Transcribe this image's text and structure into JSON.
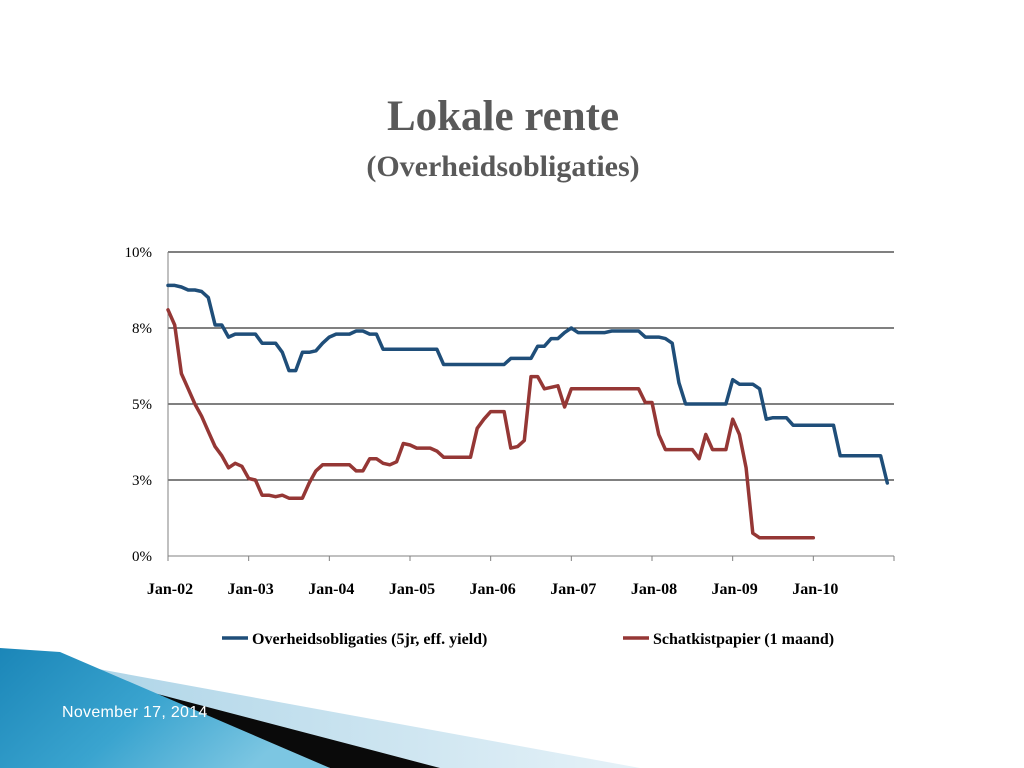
{
  "slide": {
    "title": "Lokale rente",
    "subtitle": "(Overheidsobligaties)",
    "date": "November 17, 2014"
  },
  "chart_data": {
    "type": "line",
    "title": "Lokale rente",
    "subtitle": "(Overheidsobligaties)",
    "x_tick_labels": [
      "Jan-02",
      "Jan-03",
      "Jan-04",
      "Jan-05",
      "Jan-06",
      "Jan-07",
      "Jan-08",
      "Jan-09",
      "Jan-10"
    ],
    "y_tick_labels": [
      "0%",
      "3%",
      "5%",
      "8%",
      "10%"
    ],
    "y_ticks": [
      0,
      2.5,
      5,
      7.5,
      10
    ],
    "ylim": [
      0,
      10
    ],
    "x_start": "2002-01",
    "x_end": "2010-12",
    "gridlines": "horizontal",
    "legend_position": "bottom",
    "series": [
      {
        "name": "Overheidsobligaties (5jr, eff. yield)",
        "color": "#1f4e79",
        "points": [
          [
            "2002-01",
            8.9
          ],
          [
            "2002-02",
            8.9
          ],
          [
            "2002-03",
            8.85
          ],
          [
            "2002-04",
            8.75
          ],
          [
            "2002-05",
            8.75
          ],
          [
            "2002-06",
            8.7
          ],
          [
            "2002-07",
            8.5
          ],
          [
            "2002-08",
            7.6
          ],
          [
            "2002-09",
            7.6
          ],
          [
            "2002-10",
            7.2
          ],
          [
            "2002-11",
            7.3
          ],
          [
            "2002-12",
            7.3
          ],
          [
            "2003-01",
            7.3
          ],
          [
            "2003-02",
            7.3
          ],
          [
            "2003-03",
            7.0
          ],
          [
            "2003-04",
            7.0
          ],
          [
            "2003-05",
            7.0
          ],
          [
            "2003-06",
            6.7
          ],
          [
            "2003-07",
            6.1
          ],
          [
            "2003-08",
            6.1
          ],
          [
            "2003-09",
            6.7
          ],
          [
            "2003-10",
            6.7
          ],
          [
            "2003-11",
            6.75
          ],
          [
            "2003-12",
            7.0
          ],
          [
            "2004-01",
            7.2
          ],
          [
            "2004-02",
            7.3
          ],
          [
            "2004-03",
            7.3
          ],
          [
            "2004-04",
            7.3
          ],
          [
            "2004-05",
            7.4
          ],
          [
            "2004-06",
            7.4
          ],
          [
            "2004-07",
            7.3
          ],
          [
            "2004-08",
            7.3
          ],
          [
            "2004-09",
            6.8
          ],
          [
            "2004-10",
            6.8
          ],
          [
            "2004-11",
            6.8
          ],
          [
            "2004-12",
            6.8
          ],
          [
            "2005-01",
            6.8
          ],
          [
            "2005-02",
            6.8
          ],
          [
            "2005-03",
            6.8
          ],
          [
            "2005-04",
            6.8
          ],
          [
            "2005-05",
            6.8
          ],
          [
            "2005-06",
            6.3
          ],
          [
            "2005-07",
            6.3
          ],
          [
            "2005-08",
            6.3
          ],
          [
            "2005-09",
            6.3
          ],
          [
            "2005-10",
            6.3
          ],
          [
            "2005-11",
            6.3
          ],
          [
            "2005-12",
            6.3
          ],
          [
            "2006-01",
            6.3
          ],
          [
            "2006-02",
            6.3
          ],
          [
            "2006-03",
            6.3
          ],
          [
            "2006-04",
            6.5
          ],
          [
            "2006-05",
            6.5
          ],
          [
            "2006-06",
            6.5
          ],
          [
            "2006-07",
            6.5
          ],
          [
            "2006-08",
            6.9
          ],
          [
            "2006-09",
            6.9
          ],
          [
            "2006-10",
            7.15
          ],
          [
            "2006-11",
            7.15
          ],
          [
            "2006-12",
            7.35
          ],
          [
            "2007-01",
            7.5
          ],
          [
            "2007-02",
            7.35
          ],
          [
            "2007-03",
            7.35
          ],
          [
            "2007-04",
            7.35
          ],
          [
            "2007-05",
            7.35
          ],
          [
            "2007-06",
            7.35
          ],
          [
            "2007-07",
            7.4
          ],
          [
            "2007-08",
            7.4
          ],
          [
            "2007-09",
            7.4
          ],
          [
            "2007-10",
            7.4
          ],
          [
            "2007-11",
            7.4
          ],
          [
            "2007-12",
            7.2
          ],
          [
            "2008-01",
            7.2
          ],
          [
            "2008-02",
            7.2
          ],
          [
            "2008-03",
            7.15
          ],
          [
            "2008-04",
            7.0
          ],
          [
            "2008-05",
            5.7
          ],
          [
            "2008-06",
            5.0
          ],
          [
            "2008-07",
            5.0
          ],
          [
            "2008-08",
            5.0
          ],
          [
            "2008-09",
            5.0
          ],
          [
            "2008-10",
            5.0
          ],
          [
            "2008-11",
            5.0
          ],
          [
            "2008-12",
            5.0
          ],
          [
            "2009-01",
            5.8
          ],
          [
            "2009-02",
            5.65
          ],
          [
            "2009-03",
            5.65
          ],
          [
            "2009-04",
            5.65
          ],
          [
            "2009-05",
            5.5
          ],
          [
            "2009-06",
            4.5
          ],
          [
            "2009-07",
            4.55
          ],
          [
            "2009-08",
            4.55
          ],
          [
            "2009-09",
            4.55
          ],
          [
            "2009-10",
            4.3
          ],
          [
            "2009-11",
            4.3
          ],
          [
            "2009-12",
            4.3
          ],
          [
            "2010-01",
            4.3
          ],
          [
            "2010-02",
            4.3
          ],
          [
            "2010-03",
            4.3
          ],
          [
            "2010-04",
            4.3
          ],
          [
            "2010-05",
            3.3
          ],
          [
            "2010-06",
            3.3
          ],
          [
            "2010-07",
            3.3
          ],
          [
            "2010-08",
            3.3
          ],
          [
            "2010-09",
            3.3
          ],
          [
            "2010-10",
            3.3
          ],
          [
            "2010-11",
            3.3
          ],
          [
            "2010-12",
            2.4
          ]
        ]
      },
      {
        "name": "Schatkistpapier (1 maand)",
        "color": "#953735",
        "points": [
          [
            "2002-01",
            8.1
          ],
          [
            "2002-02",
            7.6
          ],
          [
            "2002-03",
            6.0
          ],
          [
            "2002-04",
            5.5
          ],
          [
            "2002-05",
            5.0
          ],
          [
            "2002-06",
            4.6
          ],
          [
            "2002-07",
            4.1
          ],
          [
            "2002-08",
            3.6
          ],
          [
            "2002-09",
            3.3
          ],
          [
            "2002-10",
            2.9
          ],
          [
            "2002-11",
            3.05
          ],
          [
            "2002-12",
            2.95
          ],
          [
            "2003-01",
            2.55
          ],
          [
            "2003-02",
            2.5
          ],
          [
            "2003-03",
            2.0
          ],
          [
            "2003-04",
            2.0
          ],
          [
            "2003-05",
            1.95
          ],
          [
            "2003-06",
            2.0
          ],
          [
            "2003-07",
            1.9
          ],
          [
            "2003-08",
            1.9
          ],
          [
            "2003-09",
            1.9
          ],
          [
            "2003-10",
            2.4
          ],
          [
            "2003-11",
            2.8
          ],
          [
            "2003-12",
            3.0
          ],
          [
            "2004-01",
            3.0
          ],
          [
            "2004-02",
            3.0
          ],
          [
            "2004-03",
            3.0
          ],
          [
            "2004-04",
            3.0
          ],
          [
            "2004-05",
            2.8
          ],
          [
            "2004-06",
            2.8
          ],
          [
            "2004-07",
            3.2
          ],
          [
            "2004-08",
            3.2
          ],
          [
            "2004-09",
            3.05
          ],
          [
            "2004-10",
            3.0
          ],
          [
            "2004-11",
            3.1
          ],
          [
            "2004-12",
            3.7
          ],
          [
            "2005-01",
            3.65
          ],
          [
            "2005-02",
            3.55
          ],
          [
            "2005-03",
            3.55
          ],
          [
            "2005-04",
            3.55
          ],
          [
            "2005-05",
            3.45
          ],
          [
            "2005-06",
            3.25
          ],
          [
            "2005-07",
            3.25
          ],
          [
            "2005-08",
            3.25
          ],
          [
            "2005-09",
            3.25
          ],
          [
            "2005-10",
            3.25
          ],
          [
            "2005-11",
            4.2
          ],
          [
            "2005-12",
            4.5
          ],
          [
            "2006-01",
            4.75
          ],
          [
            "2006-02",
            4.75
          ],
          [
            "2006-03",
            4.75
          ],
          [
            "2006-04",
            3.55
          ],
          [
            "2006-05",
            3.6
          ],
          [
            "2006-06",
            3.8
          ],
          [
            "2006-07",
            5.9
          ],
          [
            "2006-08",
            5.9
          ],
          [
            "2006-09",
            5.5
          ],
          [
            "2006-10",
            5.55
          ],
          [
            "2006-11",
            5.6
          ],
          [
            "2006-12",
            4.9
          ],
          [
            "2007-01",
            5.5
          ],
          [
            "2007-02",
            5.5
          ],
          [
            "2007-03",
            5.5
          ],
          [
            "2007-04",
            5.5
          ],
          [
            "2007-05",
            5.5
          ],
          [
            "2007-06",
            5.5
          ],
          [
            "2007-07",
            5.5
          ],
          [
            "2007-08",
            5.5
          ],
          [
            "2007-09",
            5.5
          ],
          [
            "2007-10",
            5.5
          ],
          [
            "2007-11",
            5.5
          ],
          [
            "2007-12",
            5.05
          ],
          [
            "2008-01",
            5.05
          ],
          [
            "2008-02",
            4.0
          ],
          [
            "2008-03",
            3.5
          ],
          [
            "2008-04",
            3.5
          ],
          [
            "2008-05",
            3.5
          ],
          [
            "2008-06",
            3.5
          ],
          [
            "2008-07",
            3.5
          ],
          [
            "2008-08",
            3.2
          ],
          [
            "2008-09",
            4.0
          ],
          [
            "2008-10",
            3.5
          ],
          [
            "2008-11",
            3.5
          ],
          [
            "2008-12",
            3.5
          ],
          [
            "2009-01",
            4.5
          ],
          [
            "2009-02",
            4.0
          ],
          [
            "2009-03",
            2.9
          ],
          [
            "2009-04",
            0.75
          ],
          [
            "2009-05",
            0.6
          ],
          [
            "2009-06",
            0.6
          ],
          [
            "2009-07",
            0.6
          ],
          [
            "2009-08",
            0.6
          ],
          [
            "2009-09",
            0.6
          ],
          [
            "2009-10",
            0.6
          ],
          [
            "2009-11",
            0.6
          ],
          [
            "2009-12",
            0.6
          ],
          [
            "2010-01",
            0.6
          ]
        ]
      }
    ]
  }
}
